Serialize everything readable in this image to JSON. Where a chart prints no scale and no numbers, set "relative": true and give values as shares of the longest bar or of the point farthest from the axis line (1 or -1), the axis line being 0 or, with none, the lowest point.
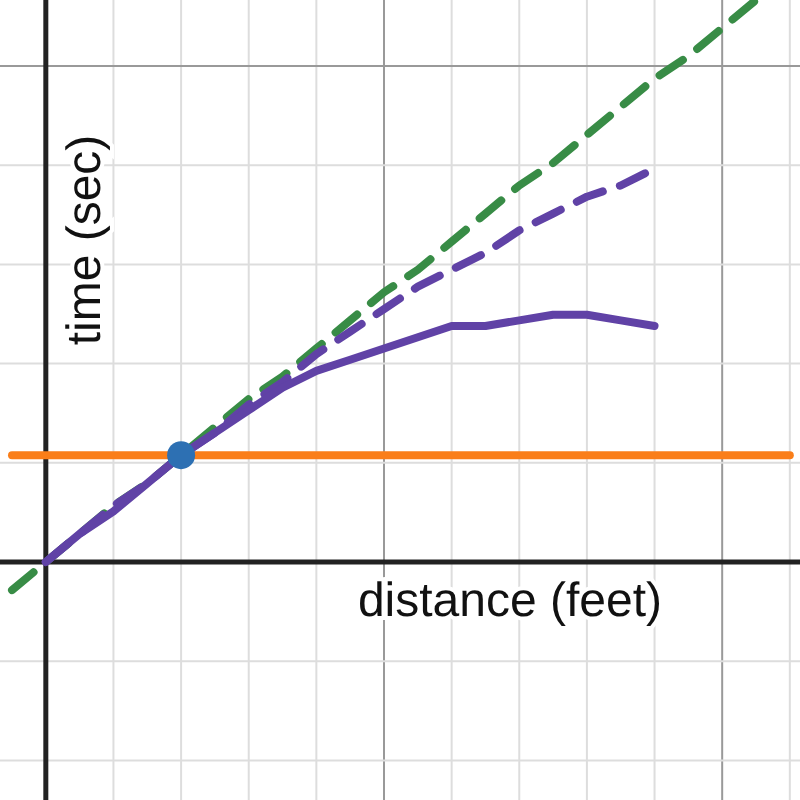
{
  "chart_data": {
    "type": "line",
    "relative": true,
    "xlabel": "distance (feet)",
    "ylabel": "time (sec)",
    "grid": true,
    "categories": [
      null,
      null,
      null,
      null,
      null,
      null,
      null,
      null,
      null,
      null,
      null,
      null,
      null,
      null,
      null,
      null,
      null,
      null,
      null,
      null,
      null,
      null,
      null,
      null
    ],
    "series": [
      {
        "color": "#388c46",
        "line_style": "dashed",
        "values": [
          -0.05,
          0,
          0.05,
          0.1,
          0.14,
          0.19,
          0.24,
          0.29,
          0.33,
          0.38,
          0.43,
          0.48,
          0.52,
          0.57,
          0.62,
          0.67,
          0.71,
          0.76,
          0.81,
          0.86,
          0.9,
          0.95,
          1.0,
          null
        ]
      },
      {
        "color": "#6042a6",
        "line_style": "dashed",
        "values": [
          null,
          0,
          0.05,
          0.1,
          0.14,
          0.19,
          0.23,
          0.28,
          0.32,
          0.37,
          0.41,
          0.45,
          0.49,
          0.52,
          0.55,
          0.59,
          0.62,
          0.65,
          0.67,
          0.7,
          null,
          null,
          null,
          null
        ]
      },
      {
        "color": "#6042a6",
        "line_style": "solid",
        "values": [
          null,
          0,
          0.05,
          0.09,
          0.14,
          0.19,
          0.23,
          0.27,
          0.31,
          0.34,
          0.36,
          0.38,
          0.4,
          0.42,
          0.42,
          0.43,
          0.44,
          0.44,
          0.43,
          0.42,
          null,
          null,
          null,
          null
        ]
      },
      {
        "color": "#fa7e19",
        "line_style": "solid",
        "values": [
          0.19,
          0.19,
          0.19,
          0.19,
          0.19,
          0.19,
          0.19,
          0.19,
          0.19,
          0.19,
          0.19,
          0.19,
          0.19,
          0.19,
          0.19,
          0.19,
          0.19,
          0.19,
          0.19,
          0.19,
          0.19,
          0.19,
          0.19,
          0.19
        ]
      },
      {
        "color": "#2d70b3",
        "marker": "circle",
        "values": [
          null,
          null,
          null,
          null,
          null,
          0.19,
          null,
          null,
          null,
          null,
          null,
          null,
          null,
          null,
          null,
          null,
          null,
          null,
          null,
          null,
          null,
          null,
          null,
          null
        ]
      }
    ]
  }
}
